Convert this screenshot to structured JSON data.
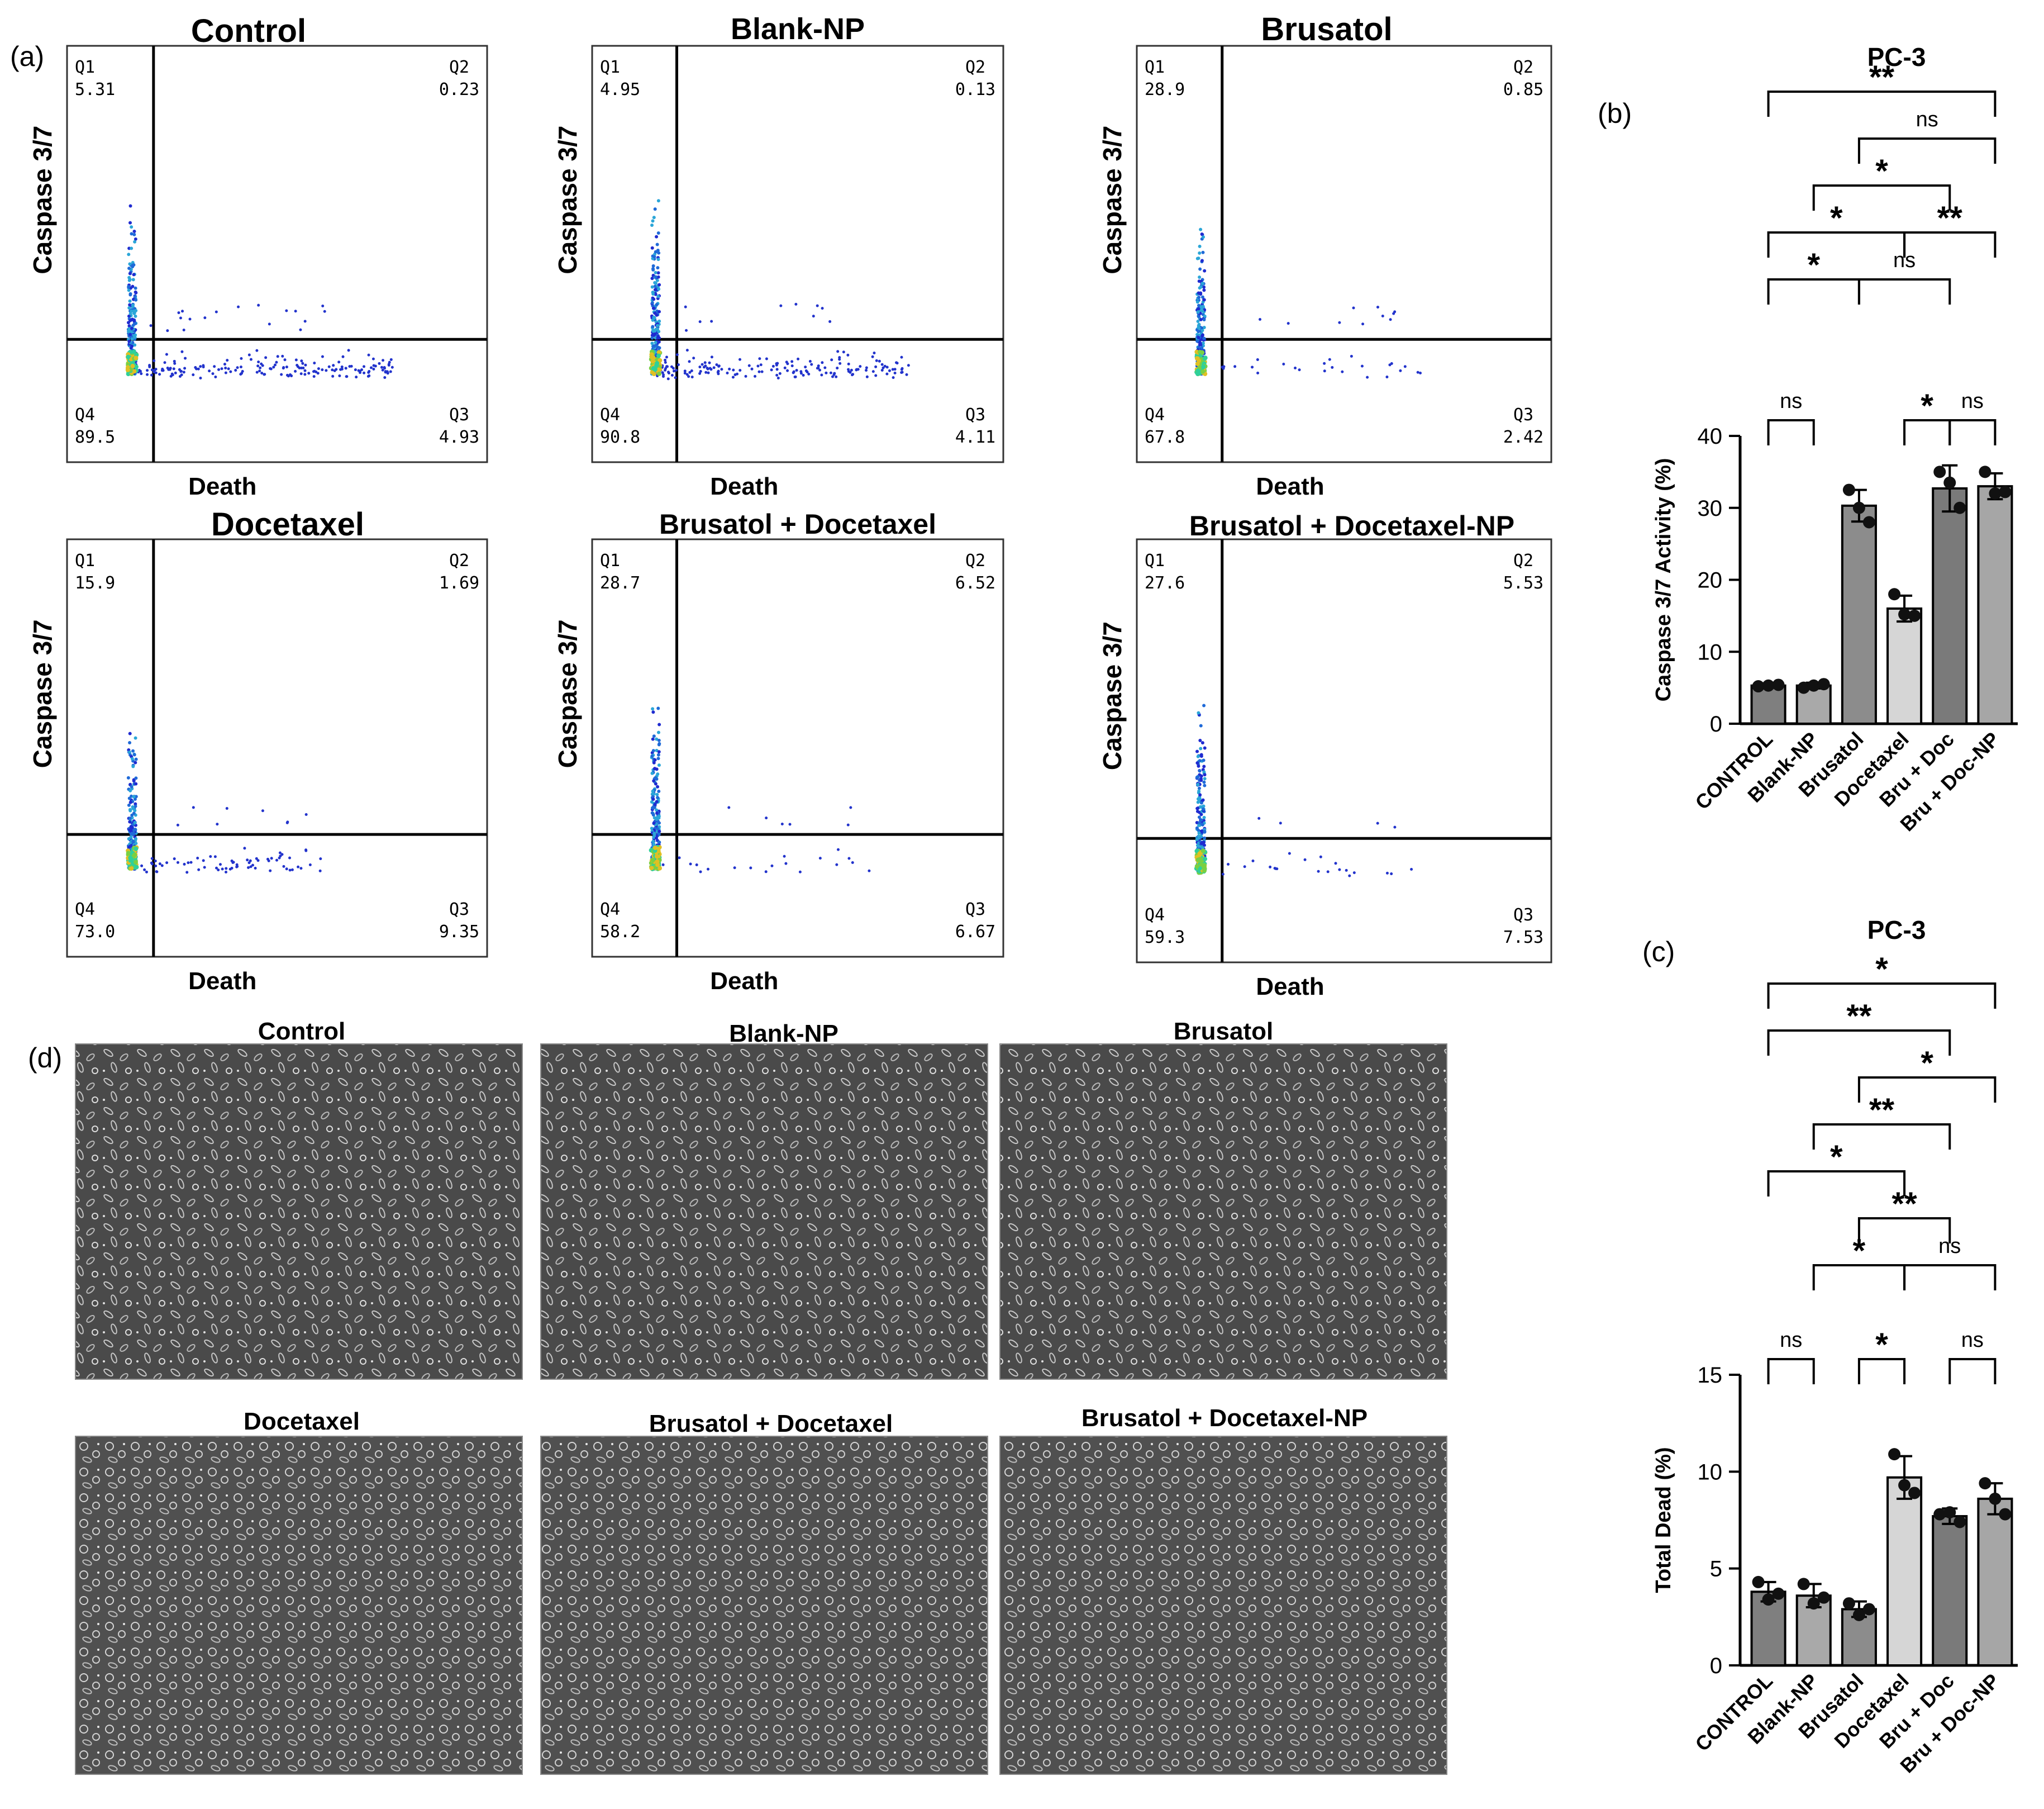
{
  "panel_labels": {
    "a": "(a)",
    "b": "(b)",
    "c": "(c)",
    "d": "(d)"
  },
  "flow_axes": {
    "x_label": "Death",
    "y_label": "Caspase 3/7"
  },
  "flow_quadrant_names": {
    "q1": "Q1",
    "q2": "Q2",
    "q3": "Q3",
    "q4": "Q4"
  },
  "flow_plots": [
    {
      "title": "Control",
      "q1": "5.31",
      "q2": "0.23",
      "q3": "4.93",
      "q4": "89.5"
    },
    {
      "title": "Blank-NP",
      "q1": "4.95",
      "q2": "0.13",
      "q3": "4.11",
      "q4": "90.8"
    },
    {
      "title": "Brusatol",
      "q1": "28.9",
      "q2": "0.85",
      "q3": "2.42",
      "q4": "67.8"
    },
    {
      "title": "Docetaxel",
      "q1": "15.9",
      "q2": "1.69",
      "q3": "9.35",
      "q4": "73.0"
    },
    {
      "title": "Brusatol + Docetaxel",
      "q1": "28.7",
      "q2": "6.52",
      "q3": "6.67",
      "q4": "58.2"
    },
    {
      "title": "Brusatol + Docetaxel-NP",
      "q1": "27.6",
      "q2": "5.53",
      "q3": "7.53",
      "q4": "59.3"
    }
  ],
  "micrographs": [
    {
      "title": "Control"
    },
    {
      "title": "Blank-NP"
    },
    {
      "title": "Brusatol"
    },
    {
      "title": "Docetaxel"
    },
    {
      "title": "Brusatol + Docetaxel"
    },
    {
      "title": "Brusatol + Docetaxel-NP"
    }
  ],
  "chart_data": [
    {
      "type": "bar",
      "title": "PC-3",
      "ylabel": "Caspase 3/7 Activity (%)",
      "xlabel": "",
      "categories": [
        "CONTROL",
        "Blank-NP",
        "Brusatol",
        "Docetaxel",
        "Bru + Doc",
        "Bru + Doc-NP"
      ],
      "values": [
        5.3,
        5.3,
        30.3,
        16.0,
        32.7,
        33.0
      ],
      "errors": [
        0.3,
        0.4,
        2.2,
        1.8,
        3.2,
        1.8
      ],
      "points": [
        [
          5.2,
          5.3,
          5.4
        ],
        [
          5.0,
          5.3,
          5.5
        ],
        [
          32.5,
          30.0,
          28.0
        ],
        [
          18.0,
          15.2,
          15.0
        ],
        [
          35.0,
          33.5,
          30.0
        ],
        [
          35.0,
          32.0,
          32.2
        ]
      ],
      "bar_colors": [
        "#7f7f7f",
        "#a9a9a9",
        "#8c8c8c",
        "#d6d6d6",
        "#7a7a7a",
        "#a6a6a6"
      ],
      "ylim": [
        0,
        40
      ],
      "yticks": [
        0,
        10,
        20,
        30,
        40
      ],
      "comparisons": [
        {
          "a": 0,
          "b": 5,
          "label": "**",
          "level": 8
        },
        {
          "a": 2,
          "b": 5,
          "label": "ns",
          "level": 7
        },
        {
          "a": 1,
          "b": 4,
          "label": "*",
          "level": 6
        },
        {
          "a": 0,
          "b": 3,
          "label": "*",
          "level": 5
        },
        {
          "a": 3,
          "b": 5,
          "label": "**",
          "level": 5
        },
        {
          "a": 0,
          "b": 2,
          "label": "*",
          "level": 4
        },
        {
          "a": 2,
          "b": 4,
          "label": "ns",
          "level": 4
        },
        {
          "a": 0,
          "b": 1,
          "label": "ns",
          "level": 1
        },
        {
          "a": 3,
          "b": 4,
          "label": "*",
          "level": 1
        },
        {
          "a": 4,
          "b": 5,
          "label": "ns",
          "level": 1
        }
      ]
    },
    {
      "type": "bar",
      "title": "PC-3",
      "ylabel": "Total  Dead (%)",
      "xlabel": "",
      "categories": [
        "CONTROL",
        "Blank-NP",
        "Brusatol",
        "Docetaxel",
        "Bru + Doc",
        "Bru + Doc-NP"
      ],
      "values": [
        3.8,
        3.6,
        2.9,
        9.7,
        7.7,
        8.6
      ],
      "errors": [
        0.5,
        0.6,
        0.4,
        1.1,
        0.4,
        0.8
      ],
      "points": [
        [
          4.3,
          3.4,
          3.7
        ],
        [
          4.2,
          3.2,
          3.5
        ],
        [
          3.2,
          2.6,
          2.9
        ],
        [
          10.9,
          9.3,
          8.9
        ],
        [
          7.8,
          7.9,
          7.4
        ],
        [
          9.4,
          8.6,
          7.8
        ]
      ],
      "bar_colors": [
        "#7f7f7f",
        "#a9a9a9",
        "#8c8c8c",
        "#d6d6d6",
        "#7a7a7a",
        "#a6a6a6"
      ],
      "ylim": [
        0,
        15
      ],
      "yticks": [
        0,
        5,
        10,
        15
      ],
      "comparisons": [
        {
          "a": 0,
          "b": 5,
          "label": "*",
          "level": 9
        },
        {
          "a": 0,
          "b": 4,
          "label": "**",
          "level": 8
        },
        {
          "a": 2,
          "b": 5,
          "label": "*",
          "level": 7
        },
        {
          "a": 1,
          "b": 4,
          "label": "**",
          "level": 6
        },
        {
          "a": 0,
          "b": 3,
          "label": "*",
          "level": 5
        },
        {
          "a": 2,
          "b": 4,
          "label": "**",
          "level": 4
        },
        {
          "a": 1,
          "b": 3,
          "label": "*",
          "level": 3
        },
        {
          "a": 3,
          "b": 5,
          "label": "ns",
          "level": 3
        },
        {
          "a": 0,
          "b": 1,
          "label": "ns",
          "level": 1
        },
        {
          "a": 2,
          "b": 3,
          "label": "*",
          "level": 1
        },
        {
          "a": 4,
          "b": 5,
          "label": "ns",
          "level": 1
        }
      ]
    }
  ]
}
